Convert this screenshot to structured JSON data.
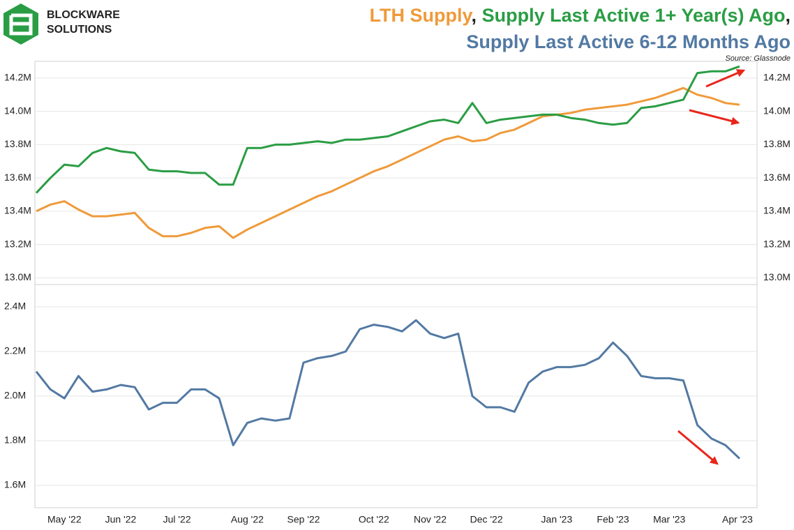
{
  "logo": {
    "lines": [
      "BLOCKWARE",
      "SOLUTIONS"
    ]
  },
  "chart_data": {
    "type": "line",
    "title_punctuation": [
      ",",
      ","
    ],
    "source": "Source: Glassnode",
    "categories": [
      null,
      null,
      "May '22",
      null,
      null,
      null,
      "Jun '22",
      null,
      null,
      null,
      "Jul '22",
      null,
      null,
      null,
      null,
      "Aug '22",
      null,
      null,
      null,
      "Sep '22",
      null,
      null,
      null,
      null,
      "Oct '22",
      null,
      null,
      null,
      "Nov '22",
      null,
      null,
      null,
      "Dec '22",
      null,
      null,
      null,
      null,
      "Jan '23",
      null,
      null,
      null,
      "Feb '23",
      null,
      null,
      null,
      "Mar '23",
      null,
      null,
      null,
      null,
      "Apr '23"
    ],
    "panels": [
      {
        "ylim": [
          12.96,
          14.3
        ],
        "yticks": [
          {
            "value": 13.0,
            "label": "13.0M"
          },
          {
            "value": 13.2,
            "label": "13.2M"
          },
          {
            "value": 13.4,
            "label": "13.4M"
          },
          {
            "value": 13.6,
            "label": "13.6M"
          },
          {
            "value": 13.8,
            "label": "13.8M"
          },
          {
            "value": 14.0,
            "label": "14.0M"
          },
          {
            "value": 14.2,
            "label": "14.2M"
          }
        ],
        "series": [
          {
            "name": "LTH Supply",
            "color": "#ef9a3a",
            "values": [
              13.4,
              13.44,
              13.46,
              13.41,
              13.37,
              13.37,
              13.38,
              13.39,
              13.3,
              13.25,
              13.25,
              13.27,
              13.3,
              13.31,
              13.24,
              13.29,
              13.33,
              13.37,
              13.41,
              13.45,
              13.49,
              13.52,
              13.56,
              13.6,
              13.64,
              13.67,
              13.71,
              13.75,
              13.79,
              13.83,
              13.85,
              13.82,
              13.83,
              13.87,
              13.89,
              13.93,
              13.97,
              13.98,
              13.99,
              14.01,
              14.02,
              14.03,
              14.04,
              14.06,
              14.08,
              14.11,
              14.14,
              14.1,
              14.08,
              14.05,
              14.04
            ]
          },
          {
            "name": "Supply Last Active 1+ Year(s) Ago",
            "color": "#2a9d44",
            "values": [
              13.51,
              13.6,
              13.68,
              13.67,
              13.75,
              13.78,
              13.76,
              13.75,
              13.65,
              13.64,
              13.64,
              13.63,
              13.63,
              13.56,
              13.56,
              13.78,
              13.78,
              13.8,
              13.8,
              13.81,
              13.82,
              13.81,
              13.83,
              13.83,
              13.84,
              13.85,
              13.88,
              13.91,
              13.94,
              13.95,
              13.93,
              14.05,
              13.93,
              13.95,
              13.96,
              13.97,
              13.98,
              13.98,
              13.96,
              13.95,
              13.93,
              13.92,
              13.93,
              14.02,
              14.03,
              14.05,
              14.07,
              14.23,
              14.24,
              14.24,
              14.27
            ]
          }
        ]
      },
      {
        "ylim": [
          1.5,
          2.5
        ],
        "yticks": [
          {
            "value": 1.6,
            "label": "1.6M"
          },
          {
            "value": 1.8,
            "label": "1.8M"
          },
          {
            "value": 2.0,
            "label": "2.0M"
          },
          {
            "value": 2.2,
            "label": "2.2M"
          },
          {
            "value": 2.4,
            "label": "2.4M"
          }
        ],
        "series": [
          {
            "name": "Supply Last Active 6-12 Months Ago",
            "color": "#5279a3",
            "values": [
              2.11,
              2.03,
              1.99,
              2.09,
              2.02,
              2.03,
              2.05,
              2.04,
              1.94,
              1.97,
              1.97,
              2.03,
              2.03,
              1.99,
              1.78,
              1.88,
              1.9,
              1.89,
              1.9,
              2.15,
              2.17,
              2.18,
              2.2,
              2.3,
              2.32,
              2.31,
              2.29,
              2.34,
              2.28,
              2.26,
              2.28,
              2.0,
              1.95,
              1.95,
              1.93,
              2.06,
              2.11,
              2.13,
              2.13,
              2.14,
              2.17,
              2.24,
              2.18,
              2.09,
              2.08,
              2.08,
              2.07,
              1.87,
              1.81,
              1.78,
              1.72
            ]
          }
        ]
      }
    ],
    "grid": true
  }
}
